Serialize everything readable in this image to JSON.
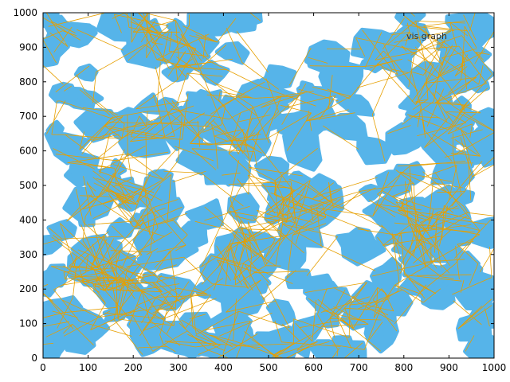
{
  "chart_data": {
    "type": "scatter",
    "title": "",
    "xlabel": "",
    "ylabel": "",
    "xlim": [
      0,
      1000
    ],
    "ylim": [
      0,
      1000
    ],
    "xticks": [
      0,
      100,
      200,
      300,
      400,
      500,
      600,
      700,
      800,
      900,
      1000
    ],
    "yticks": [
      0,
      100,
      200,
      300,
      400,
      500,
      600,
      700,
      800,
      900,
      1000
    ],
    "grid": false,
    "legend": {
      "placement": "top-right",
      "entries": [
        "vis graph"
      ]
    },
    "colors": {
      "obstacles": "#56b4e9",
      "graph_edges": "#e69f00",
      "frame": "#000000"
    },
    "series": [
      {
        "name": "vis graph",
        "kind": "edges"
      }
    ],
    "obstacle_seed": 7,
    "edge_seed": 11
  }
}
